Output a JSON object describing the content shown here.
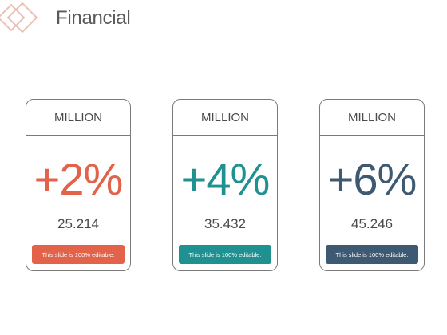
{
  "slide": {
    "title": "Financial"
  },
  "colors": {
    "logo": "#e9c2b7",
    "title": "#5a5a5a"
  },
  "cards": [
    {
      "header": "MILLION",
      "percent": "+2%",
      "value": "25.214",
      "note": "This slide is 100% editable.",
      "accent": "#e2624a"
    },
    {
      "header": "MILLION",
      "percent": "+4%",
      "value": "35.432",
      "note": "This slide is 100% editable.",
      "accent": "#1f9191"
    },
    {
      "header": "MILLION",
      "percent": "+6%",
      "value": "45.246",
      "note": "This slide is 100% editable.",
      "accent": "#3e5a72"
    }
  ]
}
